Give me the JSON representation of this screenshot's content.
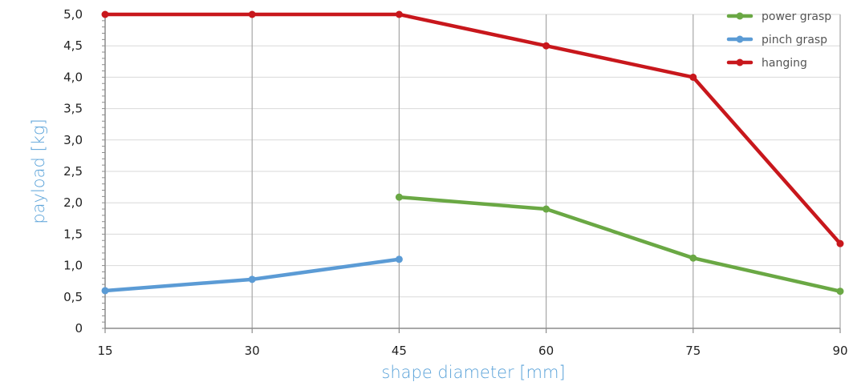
{
  "chart_data": {
    "type": "line",
    "xlabel": "shape diameter [mm]",
    "ylabel": "payload [kg]",
    "x_ticks": [
      "15",
      "30",
      "45",
      "60",
      "75",
      "90"
    ],
    "y_ticks": [
      "0",
      "0,5",
      "1,0",
      "1,5",
      "2,0",
      "2,5",
      "3,0",
      "3,5",
      "4,0",
      "4,5",
      "5,0"
    ],
    "xlim": [
      15,
      90
    ],
    "ylim": [
      0,
      5
    ],
    "grid": "vertical",
    "legend_position": "top-right",
    "axis_title_color": "#5ba3d9",
    "series": [
      {
        "name": "power grasp",
        "color": "#6aa844",
        "x": [
          45,
          60,
          75,
          90
        ],
        "y": [
          2.09,
          1.9,
          1.12,
          0.59
        ]
      },
      {
        "name": "pinch grasp",
        "color": "#5b9bd5",
        "x": [
          15,
          30,
          45
        ],
        "y": [
          0.6,
          0.78,
          1.1
        ]
      },
      {
        "name": "hanging",
        "color": "#c8171c",
        "x": [
          15,
          30,
          45,
          60,
          75,
          90
        ],
        "y": [
          5.0,
          5.0,
          5.0,
          4.5,
          4.0,
          1.35
        ]
      }
    ]
  }
}
